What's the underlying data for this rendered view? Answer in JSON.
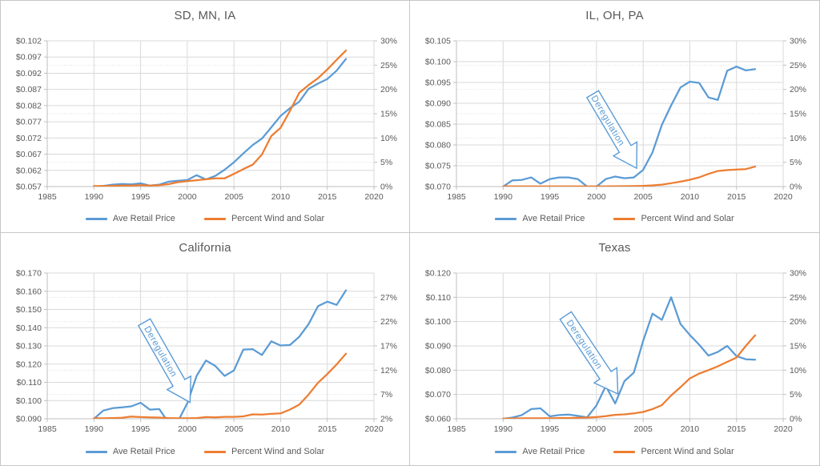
{
  "colors": {
    "price_line": "#5B9BD5",
    "wind_solar_line": "#ED7D31",
    "annotation_outline": "#5B9BD5",
    "annotation_fill": "#FFFFFF",
    "text": "#595959",
    "gridline": "#D9D9D9",
    "axis_line": "#BFBFBF"
  },
  "chart_data": [
    {
      "type": "line",
      "title": "SD, MN, IA",
      "x_axis": {
        "min": 1985,
        "max": 2020,
        "tick_labels": [
          "1985",
          "1990",
          "1995",
          "2000",
          "2005",
          "2010",
          "2015",
          "2020"
        ]
      },
      "left_axis": {
        "min": 0.057,
        "max": 0.102,
        "tick_labels": [
          "$0.057",
          "$0.062",
          "$0.067",
          "$0.072",
          "$0.077",
          "$0.082",
          "$0.087",
          "$0.092",
          "$0.097",
          "$0.102"
        ]
      },
      "right_axis": {
        "min": 0,
        "max": 30,
        "tick_labels": [
          "0%",
          "5%",
          "10%",
          "15%",
          "20%",
          "25%",
          "30%"
        ]
      },
      "x": [
        1990,
        1991,
        1992,
        1993,
        1994,
        1995,
        1996,
        1997,
        1998,
        1999,
        2000,
        2001,
        2002,
        2003,
        2004,
        2005,
        2006,
        2007,
        2008,
        2009,
        2010,
        2011,
        2012,
        2013,
        2014,
        2015,
        2016,
        2017
      ],
      "series": [
        {
          "name": "Ave Retail Price",
          "axis": "left",
          "color_key": "price_line",
          "values": [
            0.057,
            0.0572,
            0.0576,
            0.0578,
            0.0577,
            0.058,
            0.0573,
            0.0576,
            0.0585,
            0.0588,
            0.059,
            0.0605,
            0.0592,
            0.0603,
            0.0622,
            0.0645,
            0.0672,
            0.0698,
            0.0718,
            0.0753,
            0.0788,
            0.0812,
            0.0832,
            0.0872,
            0.0888,
            0.0902,
            0.0928,
            0.0964
          ]
        },
        {
          "name": "Percent Wind and Solar",
          "axis": "right",
          "color_key": "wind_solar_line",
          "values": [
            0.1,
            0.1,
            0.15,
            0.2,
            0.2,
            0.3,
            0.2,
            0.3,
            0.5,
            0.9,
            1.1,
            1.3,
            1.5,
            1.7,
            1.7,
            2.6,
            3.6,
            4.5,
            6.6,
            10.4,
            12.1,
            15.6,
            19.3,
            20.9,
            22.3,
            24.1,
            26.1,
            28.0
          ]
        }
      ],
      "annotation": null
    },
    {
      "type": "line",
      "title": "IL, OH, PA",
      "x_axis": {
        "min": 1985,
        "max": 2020,
        "tick_labels": [
          "1985",
          "1990",
          "1995",
          "2000",
          "2005",
          "2010",
          "2015",
          "2020"
        ]
      },
      "left_axis": {
        "min": 0.07,
        "max": 0.105,
        "tick_labels": [
          "$0.070",
          "$0.075",
          "$0.080",
          "$0.085",
          "$0.090",
          "$0.095",
          "$0.100",
          "$0.105"
        ]
      },
      "right_axis": {
        "min": 0,
        "max": 30,
        "tick_labels": [
          "0%",
          "5%",
          "10%",
          "15%",
          "20%",
          "25%",
          "30%"
        ]
      },
      "x": [
        1990,
        1991,
        1992,
        1993,
        1994,
        1995,
        1996,
        1997,
        1998,
        1999,
        2000,
        2001,
        2002,
        2003,
        2004,
        2005,
        2006,
        2007,
        2008,
        2009,
        2010,
        2011,
        2012,
        2013,
        2014,
        2015,
        2016,
        2017
      ],
      "series": [
        {
          "name": "Ave Retail Price",
          "axis": "left",
          "color_key": "price_line",
          "values": [
            0.07,
            0.0715,
            0.0716,
            0.0722,
            0.0707,
            0.0718,
            0.0722,
            0.0722,
            0.0718,
            0.07,
            0.07,
            0.0718,
            0.0724,
            0.072,
            0.0722,
            0.074,
            0.0782,
            0.0848,
            0.0895,
            0.0938,
            0.0952,
            0.0949,
            0.0914,
            0.0908,
            0.0978,
            0.0988,
            0.0979,
            0.0982
          ]
        },
        {
          "name": "Percent Wind and Solar",
          "axis": "right",
          "color_key": "wind_solar_line",
          "values": [
            0.05,
            0.05,
            0.05,
            0.05,
            0.05,
            0.05,
            0.05,
            0.05,
            0.05,
            0.05,
            0.05,
            0.05,
            0.06,
            0.08,
            0.1,
            0.15,
            0.25,
            0.4,
            0.7,
            1.0,
            1.4,
            1.9,
            2.6,
            3.2,
            3.4,
            3.5,
            3.6,
            4.1
          ]
        }
      ],
      "annotation": {
        "text": "Deregulation",
        "tail": [
          1999.6,
          0.0922
        ],
        "tip": [
          2004.3,
          0.0744
        ]
      }
    },
    {
      "type": "line",
      "title": "California",
      "x_axis": {
        "min": 1985,
        "max": 2020,
        "tick_labels": [
          "1985",
          "1990",
          "1995",
          "2000",
          "2005",
          "2010",
          "2015",
          "2020"
        ]
      },
      "left_axis": {
        "min": 0.09,
        "max": 0.17,
        "tick_labels": [
          "$0.090",
          "$0.100",
          "$0.110",
          "$0.120",
          "$0.130",
          "$0.140",
          "$0.150",
          "$0.160",
          "$0.170"
        ]
      },
      "right_axis": {
        "min": 2,
        "max": 32,
        "tick_labels": [
          "2%",
          "7%",
          "12%",
          "17%",
          "22%",
          "27%"
        ]
      },
      "x": [
        1990,
        1991,
        1992,
        1993,
        1994,
        1995,
        1996,
        1997,
        1998,
        1999,
        2000,
        2001,
        2002,
        2003,
        2004,
        2005,
        2006,
        2007,
        2008,
        2009,
        2010,
        2011,
        2012,
        2013,
        2014,
        2015,
        2016,
        2017
      ],
      "series": [
        {
          "name": "Ave Retail Price",
          "axis": "left",
          "color_key": "price_line",
          "values": [
            0.09,
            0.0945,
            0.0958,
            0.0963,
            0.0968,
            0.0988,
            0.095,
            0.0953,
            0.0878,
            0.0886,
            0.0985,
            0.1135,
            0.122,
            0.119,
            0.1135,
            0.1165,
            0.128,
            0.1282,
            0.125,
            0.1325,
            0.1302,
            0.1305,
            0.135,
            0.142,
            0.1518,
            0.1543,
            0.1525,
            0.1605
          ]
        },
        {
          "name": "Percent Wind and Solar",
          "axis": "right",
          "color_key": "wind_solar_line",
          "values": [
            2.1,
            2.1,
            2.15,
            2.2,
            2.45,
            2.35,
            2.3,
            2.25,
            2.15,
            2.1,
            2.1,
            2.15,
            2.35,
            2.3,
            2.4,
            2.4,
            2.5,
            2.9,
            2.85,
            3.0,
            3.1,
            3.9,
            4.9,
            7.0,
            9.4,
            11.2,
            13.2,
            15.4
          ]
        }
      ],
      "annotation": {
        "text": "Deregulation",
        "tail": [
          1995.4,
          0.143
        ],
        "tip": [
          2000.3,
          0.099
        ]
      }
    },
    {
      "type": "line",
      "title": "Texas",
      "x_axis": {
        "min": 1985,
        "max": 2020,
        "tick_labels": [
          "1985",
          "1990",
          "1995",
          "2000",
          "2005",
          "2010",
          "2015",
          "2020"
        ]
      },
      "left_axis": {
        "min": 0.06,
        "max": 0.12,
        "tick_labels": [
          "$0.060",
          "$0.070",
          "$0.080",
          "$0.090",
          "$0.100",
          "$0.110",
          "$0.120"
        ]
      },
      "right_axis": {
        "min": 0,
        "max": 30,
        "tick_labels": [
          "0%",
          "5%",
          "10%",
          "15%",
          "20%",
          "25%",
          "30%"
        ]
      },
      "x": [
        1990,
        1991,
        1992,
        1993,
        1994,
        1995,
        1996,
        1997,
        1998,
        1999,
        2000,
        2001,
        2002,
        2003,
        2004,
        2005,
        2006,
        2007,
        2008,
        2009,
        2010,
        2011,
        2012,
        2013,
        2014,
        2015,
        2016,
        2017
      ],
      "series": [
        {
          "name": "Ave Retail Price",
          "axis": "left",
          "color_key": "price_line",
          "values": [
            0.06,
            0.0605,
            0.0615,
            0.064,
            0.0643,
            0.061,
            0.0615,
            0.0617,
            0.0612,
            0.0606,
            0.0655,
            0.0735,
            0.0663,
            0.0755,
            0.079,
            0.092,
            0.1033,
            0.1007,
            0.11,
            0.099,
            0.0945,
            0.0905,
            0.086,
            0.0875,
            0.09,
            0.0858,
            0.0845,
            0.0843
          ]
        },
        {
          "name": "Percent Wind and Solar",
          "axis": "right",
          "color_key": "wind_solar_line",
          "values": [
            0.05,
            0.05,
            0.1,
            0.1,
            0.1,
            0.1,
            0.15,
            0.15,
            0.2,
            0.25,
            0.35,
            0.55,
            0.8,
            0.9,
            1.1,
            1.4,
            2.0,
            2.8,
            4.8,
            6.5,
            8.3,
            9.3,
            10.0,
            10.8,
            11.7,
            12.6,
            15.0,
            17.2
          ]
        }
      ],
      "annotation": {
        "text": "Deregulation",
        "tail": [
          1996.7,
          0.1025
        ],
        "tip": [
          2002.3,
          0.0702
        ]
      }
    }
  ]
}
